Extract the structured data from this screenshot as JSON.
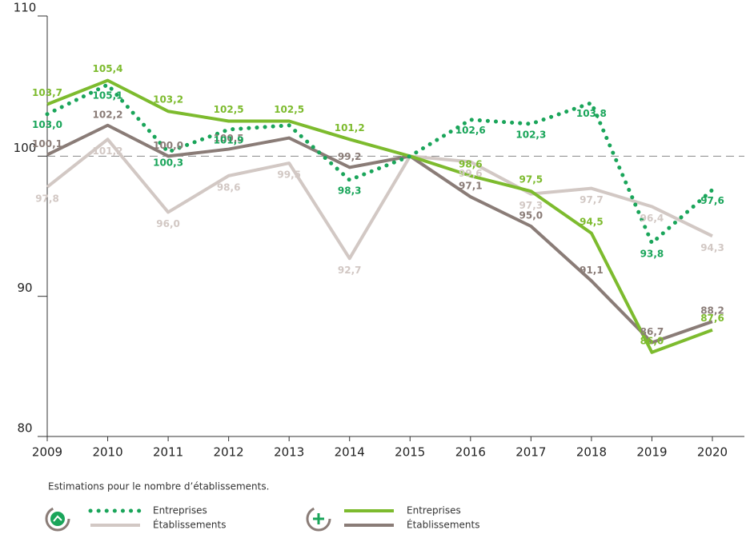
{
  "chart_data": {
    "type": "line",
    "note": "Estimations pour le nombre d’établissements.",
    "categories": [
      "2009",
      "2010",
      "2011",
      "2012",
      "2013",
      "2014",
      "2015",
      "2016",
      "2017",
      "2018",
      "2019",
      "2020"
    ],
    "ylim": [
      80,
      110
    ],
    "yticks": [
      80,
      90,
      100,
      110
    ],
    "hline": 100,
    "series": [
      {
        "name": "Entreprises",
        "color": "#1aa55a",
        "style": "dotted",
        "group": 0,
        "values": [
          103.0,
          105.1,
          100.3,
          101.9,
          102.2,
          98.3,
          100,
          102.6,
          102.3,
          103.8,
          93.8,
          97.6
        ],
        "value_labels": [
          "103,0",
          "105,1",
          "100,3",
          "101,9",
          null,
          "98,3",
          null,
          "102,6",
          "102,3",
          "103,8",
          "93,8",
          "97,6"
        ]
      },
      {
        "name": "Établissements",
        "color": "#d2c8c4",
        "style": "solid",
        "group": 0,
        "values": [
          97.8,
          101.2,
          96.0,
          98.6,
          99.5,
          92.7,
          100,
          99.6,
          97.3,
          97.7,
          96.4,
          94.3
        ],
        "value_labels": [
          "97,8",
          "101,2",
          "96,0",
          "98,6",
          "99,5",
          "92,7",
          null,
          "99,6",
          "97,3",
          "97,7",
          "96,4",
          "94,3"
        ]
      },
      {
        "name": "Entreprises",
        "color": "#7dbb2e",
        "style": "solid",
        "group": 1,
        "values": [
          103.7,
          105.4,
          103.2,
          102.5,
          102.5,
          101.2,
          100,
          98.6,
          97.5,
          94.5,
          86.0,
          87.6
        ],
        "value_labels": [
          "103,7",
          "105,4",
          "103,2",
          "102,5",
          "102,5",
          "101,2",
          null,
          "98,6",
          "97,5",
          "94,5",
          "86,0",
          "87,6"
        ]
      },
      {
        "name": "Établissements",
        "color": "#8a7c77",
        "style": "solid",
        "group": 1,
        "values": [
          100.1,
          102.2,
          100.0,
          100.5,
          101.3,
          99.2,
          100,
          97.1,
          95.0,
          91.1,
          86.7,
          88.2
        ],
        "value_labels": [
          "100,1",
          "102,2",
          "100,0",
          "100,5",
          null,
          "99,2",
          null,
          "97,1",
          "95,0",
          "91,1",
          "86,7",
          "88,2"
        ]
      }
    ]
  }
}
